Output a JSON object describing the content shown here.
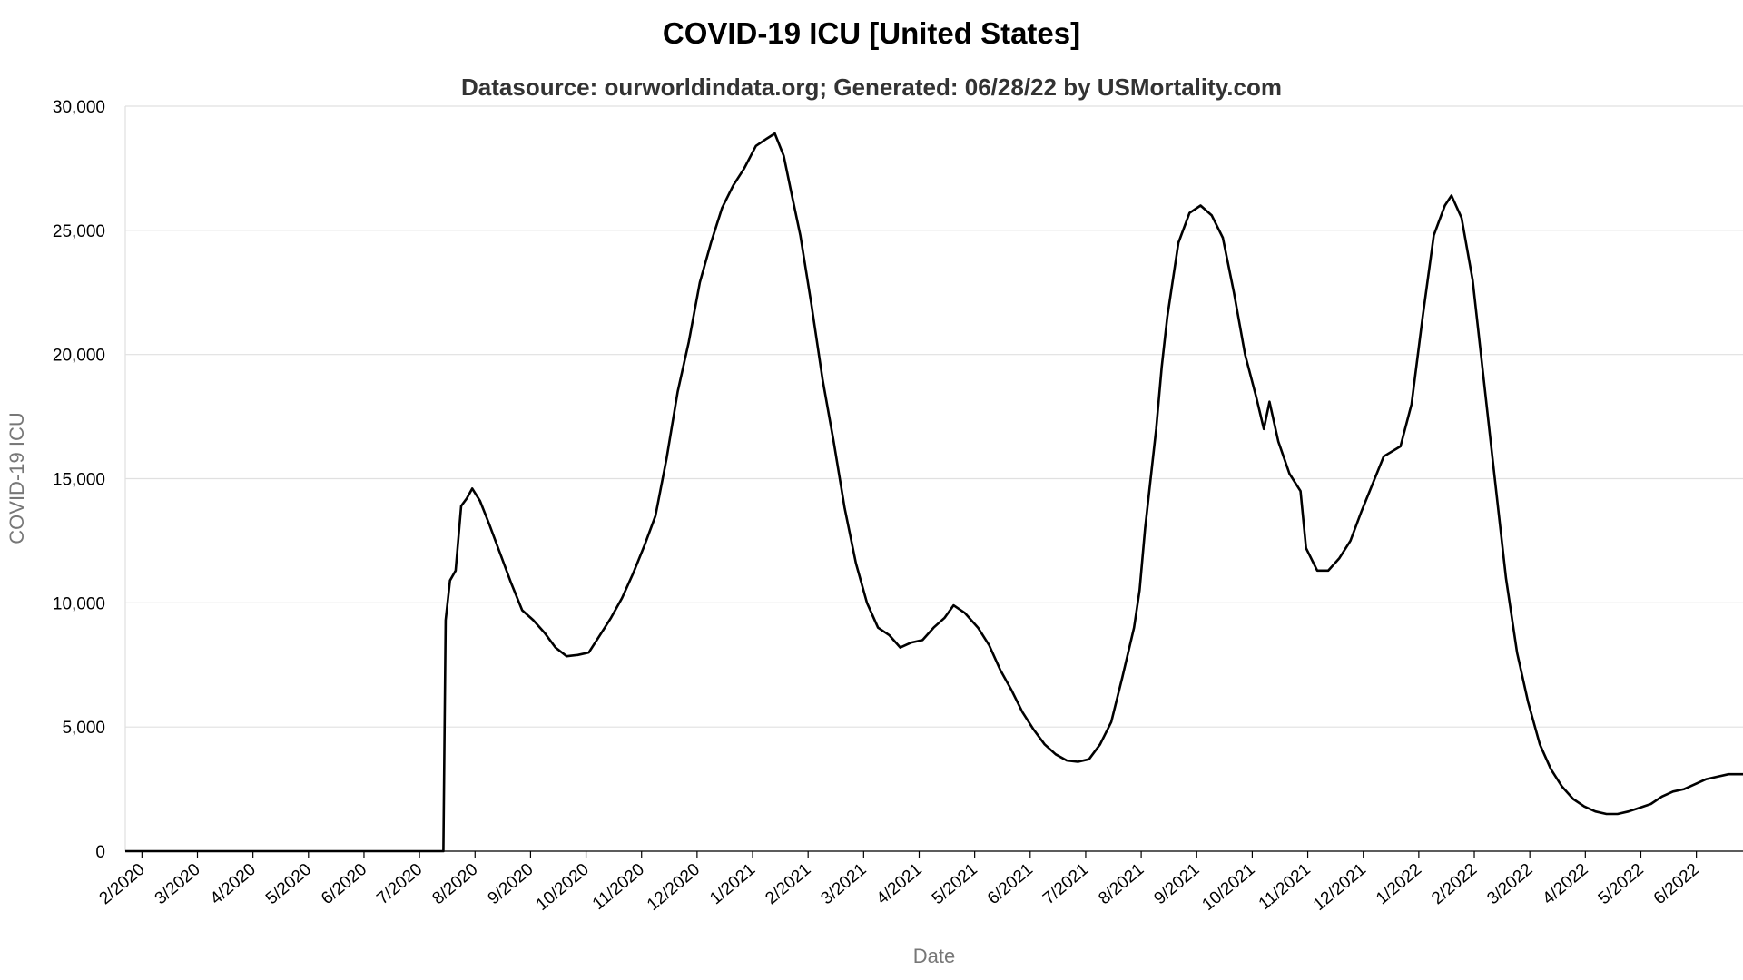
{
  "chart_data": {
    "type": "line",
    "title": "COVID-19 ICU [United States]",
    "subtitle": "Datasource: ourworldindata.org; Generated: 06/28/22 by USMortality.com",
    "xlabel": "Date",
    "ylabel": "COVID-19 ICU",
    "color": "#000000",
    "grid": true,
    "xlim": [
      -0.3,
      28.84
    ],
    "ylim": [
      0,
      30000
    ],
    "yticks": [
      0,
      {
        "value": 5000,
        "label": "5,000"
      },
      {
        "value": 10000,
        "label": "10,000"
      },
      {
        "value": 15000,
        "label": "15,000"
      },
      {
        "value": 20000,
        "label": "20,000"
      },
      {
        "value": 25000,
        "label": "25,000"
      },
      {
        "value": 30000,
        "label": "30,000"
      }
    ],
    "xticks": [
      {
        "value": 0,
        "label": "2/2020"
      },
      {
        "value": 1,
        "label": "3/2020"
      },
      {
        "value": 2,
        "label": "4/2020"
      },
      {
        "value": 3,
        "label": "5/2020"
      },
      {
        "value": 4,
        "label": "6/2020"
      },
      {
        "value": 5,
        "label": "7/2020"
      },
      {
        "value": 6,
        "label": "8/2020"
      },
      {
        "value": 7,
        "label": "9/2020"
      },
      {
        "value": 8,
        "label": "10/2020"
      },
      {
        "value": 9,
        "label": "11/2020"
      },
      {
        "value": 10,
        "label": "12/2020"
      },
      {
        "value": 11,
        "label": "1/2021"
      },
      {
        "value": 12,
        "label": "2/2021"
      },
      {
        "value": 13,
        "label": "3/2021"
      },
      {
        "value": 14,
        "label": "4/2021"
      },
      {
        "value": 15,
        "label": "5/2021"
      },
      {
        "value": 16,
        "label": "6/2021"
      },
      {
        "value": 17,
        "label": "7/2021"
      },
      {
        "value": 18,
        "label": "8/2021"
      },
      {
        "value": 19,
        "label": "9/2021"
      },
      {
        "value": 20,
        "label": "10/2021"
      },
      {
        "value": 21,
        "label": "11/2021"
      },
      {
        "value": 22,
        "label": "12/2021"
      },
      {
        "value": 23,
        "label": "1/2022"
      },
      {
        "value": 24,
        "label": "2/2022"
      },
      {
        "value": 25,
        "label": "3/2022"
      },
      {
        "value": 26,
        "label": "4/2022"
      },
      {
        "value": 27,
        "label": "5/2022"
      },
      {
        "value": 28,
        "label": "6/2022"
      }
    ],
    "x": [
      -0.3,
      5.43,
      5.47,
      5.55,
      5.65,
      5.75,
      5.85,
      5.95,
      6.09,
      6.25,
      6.45,
      6.65,
      6.85,
      7.05,
      7.25,
      7.45,
      7.65,
      7.85,
      8.05,
      8.25,
      8.45,
      8.65,
      8.85,
      9.05,
      9.25,
      9.45,
      9.65,
      9.85,
      10.05,
      10.25,
      10.45,
      10.65,
      10.85,
      11.06,
      11.26,
      11.4,
      11.56,
      11.7,
      11.86,
      12.06,
      12.26,
      12.46,
      12.66,
      12.86,
      13.06,
      13.26,
      13.46,
      13.66,
      13.86,
      14.06,
      14.26,
      14.46,
      14.62,
      14.82,
      15.06,
      15.26,
      15.46,
      15.66,
      15.86,
      16.06,
      16.26,
      16.46,
      16.66,
      16.86,
      17.06,
      17.26,
      17.46,
      17.66,
      17.87,
      17.97,
      18.07,
      18.27,
      18.37,
      18.47,
      18.67,
      18.87,
      19.07,
      19.27,
      19.47,
      19.67,
      19.87,
      20.07,
      20.21,
      20.31,
      20.47,
      20.67,
      20.87,
      20.97,
      21.17,
      21.37,
      21.57,
      21.77,
      21.97,
      22.17,
      22.37,
      22.67,
      22.87,
      23.07,
      23.27,
      23.47,
      23.59,
      23.77,
      23.97,
      24.17,
      24.37,
      24.57,
      24.77,
      24.97,
      25.18,
      25.38,
      25.58,
      25.78,
      25.98,
      26.18,
      26.38,
      26.58,
      26.78,
      26.98,
      27.18,
      27.38,
      27.58,
      27.78,
      27.98,
      28.18,
      28.38,
      28.58,
      28.84
    ],
    "values": [
      0,
      0,
      9300,
      10900,
      11300,
      13900,
      14200,
      14600,
      14100,
      13200,
      12000,
      10800,
      9700,
      9300,
      8800,
      8200,
      7850,
      7900,
      8000,
      8700,
      9400,
      10200,
      11200,
      12300,
      13500,
      15800,
      18500,
      20500,
      22900,
      24500,
      25900,
      26800,
      27500,
      28400,
      28700,
      28900,
      28000,
      26500,
      24800,
      22000,
      19000,
      16500,
      13800,
      11600,
      10000,
      9000,
      8700,
      8200,
      8400,
      8500,
      9000,
      9400,
      9900,
      9600,
      9000,
      8300,
      7300,
      6500,
      5600,
      4900,
      4300,
      3900,
      3650,
      3600,
      3700,
      4300,
      5200,
      7000,
      9000,
      10500,
      13000,
      17000,
      19500,
      21500,
      24500,
      25700,
      26000,
      25600,
      24700,
      22500,
      20000,
      18300,
      17000,
      18100,
      16500,
      15200,
      14500,
      12200,
      11300,
      11300,
      11800,
      12500,
      13700,
      14800,
      15900,
      16300,
      18000,
      21500,
      24800,
      26000,
      26400,
      25500,
      23000,
      19000,
      15000,
      11000,
      8000,
      6000,
      4300,
      3300,
      2600,
      2100,
      1800,
      1600,
      1500,
      1500,
      1600,
      1750,
      1900,
      2200,
      2400,
      2500,
      2700,
      2900,
      3000,
      3100,
      3100
    ]
  }
}
